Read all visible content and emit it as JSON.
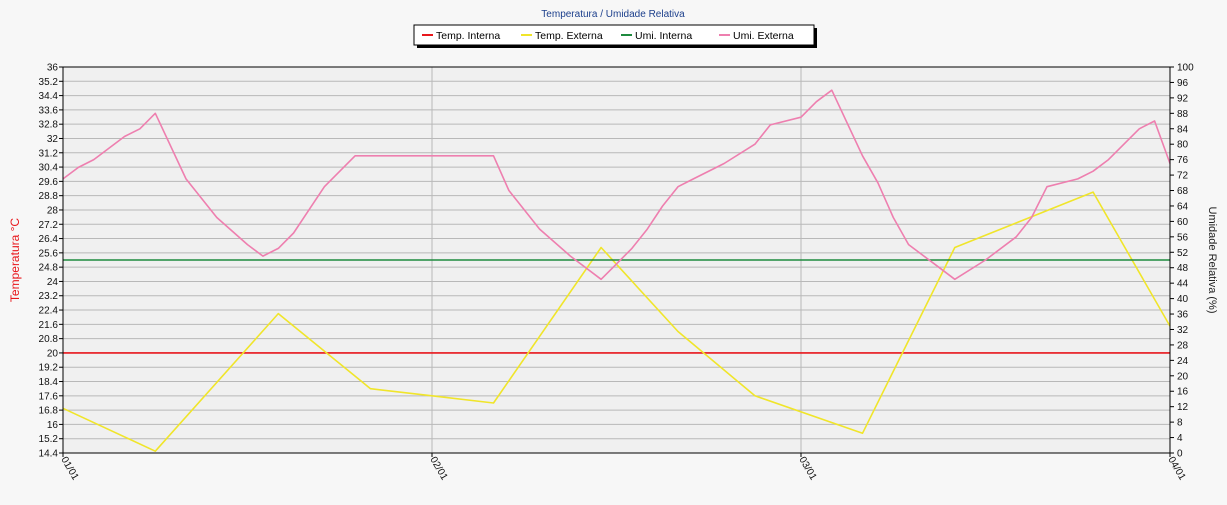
{
  "chart_data": {
    "type": "line",
    "title": "Temperatura / Umidade Relativa",
    "y_left_label": "Temperatura °C",
    "y_right_label": "Umidade Relativa (%)",
    "x_tick_labels": [
      "01/01",
      "02/01",
      "03/01",
      "04/01"
    ],
    "x_range": [
      0,
      72
    ],
    "ylim_left": [
      14.4,
      36
    ],
    "ylim_right": [
      0,
      100
    ],
    "y_left_ticks": [
      "14.4",
      "15.2",
      "16",
      "16.8",
      "17.6",
      "18.4",
      "19.2",
      "20",
      "20.8",
      "21.6",
      "22.4",
      "23.2",
      "24",
      "24.8",
      "25.6",
      "26.4",
      "27.2",
      "28",
      "28.8",
      "29.6",
      "30.4",
      "31.2",
      "32",
      "32.8",
      "33.6",
      "34.4",
      "35.2",
      "36"
    ],
    "y_right_ticks": [
      "0",
      "4",
      "8",
      "12",
      "16",
      "20",
      "24",
      "28",
      "32",
      "36",
      "40",
      "44",
      "48",
      "52",
      "56",
      "60",
      "64",
      "68",
      "72",
      "76",
      "80",
      "84",
      "88",
      "92",
      "96",
      "100"
    ],
    "grid": true,
    "legend_position": "top-center",
    "series": [
      {
        "name": "Temp. Interna",
        "axis": "left",
        "color": "#e8171c",
        "x": [
          0,
          72
        ],
        "y": [
          20.0,
          20.0
        ]
      },
      {
        "name": "Temp. Externa",
        "axis": "left",
        "color": "#f0e52a",
        "x": [
          0,
          6,
          14,
          20,
          24,
          28,
          35,
          40,
          45,
          52,
          58,
          67,
          72
        ],
        "y": [
          16.9,
          14.5,
          22.2,
          18.0,
          17.6,
          17.2,
          25.9,
          21.2,
          17.6,
          15.5,
          25.9,
          29.0,
          21.5
        ]
      },
      {
        "name": "Umi. Interna",
        "axis": "right",
        "color": "#1e8a3e",
        "x": [
          0,
          72
        ],
        "y": [
          50,
          50
        ]
      },
      {
        "name": "Umi. Externa",
        "axis": "right",
        "color": "#ee7faf",
        "x": [
          0,
          1,
          2,
          4,
          5,
          6,
          8,
          10,
          12,
          13,
          14,
          15,
          16,
          17,
          19,
          20,
          22,
          24,
          26,
          28,
          29,
          31,
          33,
          35,
          36,
          37,
          38,
          39,
          40,
          41,
          43,
          45,
          46,
          48,
          49,
          50,
          52,
          53,
          54,
          55,
          57,
          58,
          60,
          62,
          63,
          64,
          66,
          67,
          68,
          69,
          70,
          71,
          72
        ],
        "y": [
          71,
          74,
          76,
          82,
          84,
          88,
          71,
          61,
          54,
          51,
          53,
          57,
          63,
          69,
          77,
          77,
          77,
          77,
          77,
          77,
          68,
          58,
          51,
          45,
          49,
          53,
          58,
          64,
          69,
          71,
          75,
          80,
          85,
          87,
          91,
          94,
          77,
          70,
          61,
          54,
          48,
          45,
          50,
          56,
          61,
          69,
          71,
          73,
          76,
          80,
          84,
          86,
          75
        ]
      }
    ]
  }
}
